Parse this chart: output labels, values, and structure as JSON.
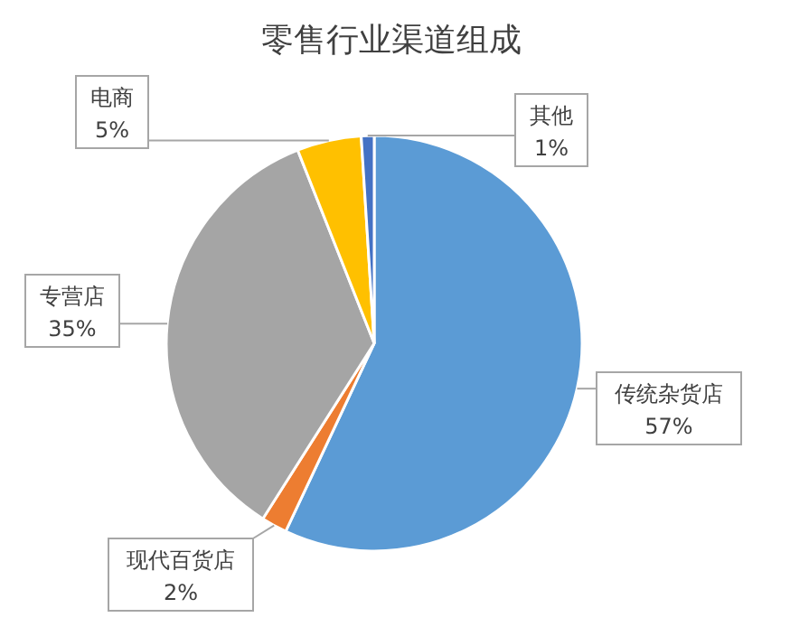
{
  "chart_data": {
    "type": "pie",
    "title": "零售行业渠道组成",
    "categories": [
      "传统杂货店",
      "现代百货店",
      "专营店",
      "电商",
      "其他"
    ],
    "values": [
      57,
      2,
      35,
      5,
      1
    ],
    "value_labels": [
      "57%",
      "2%",
      "35%",
      "5%",
      "1%"
    ],
    "colors": [
      "#5b9bd5",
      "#ed7d31",
      "#a5a5a5",
      "#ffc000",
      "#4472c4"
    ]
  }
}
